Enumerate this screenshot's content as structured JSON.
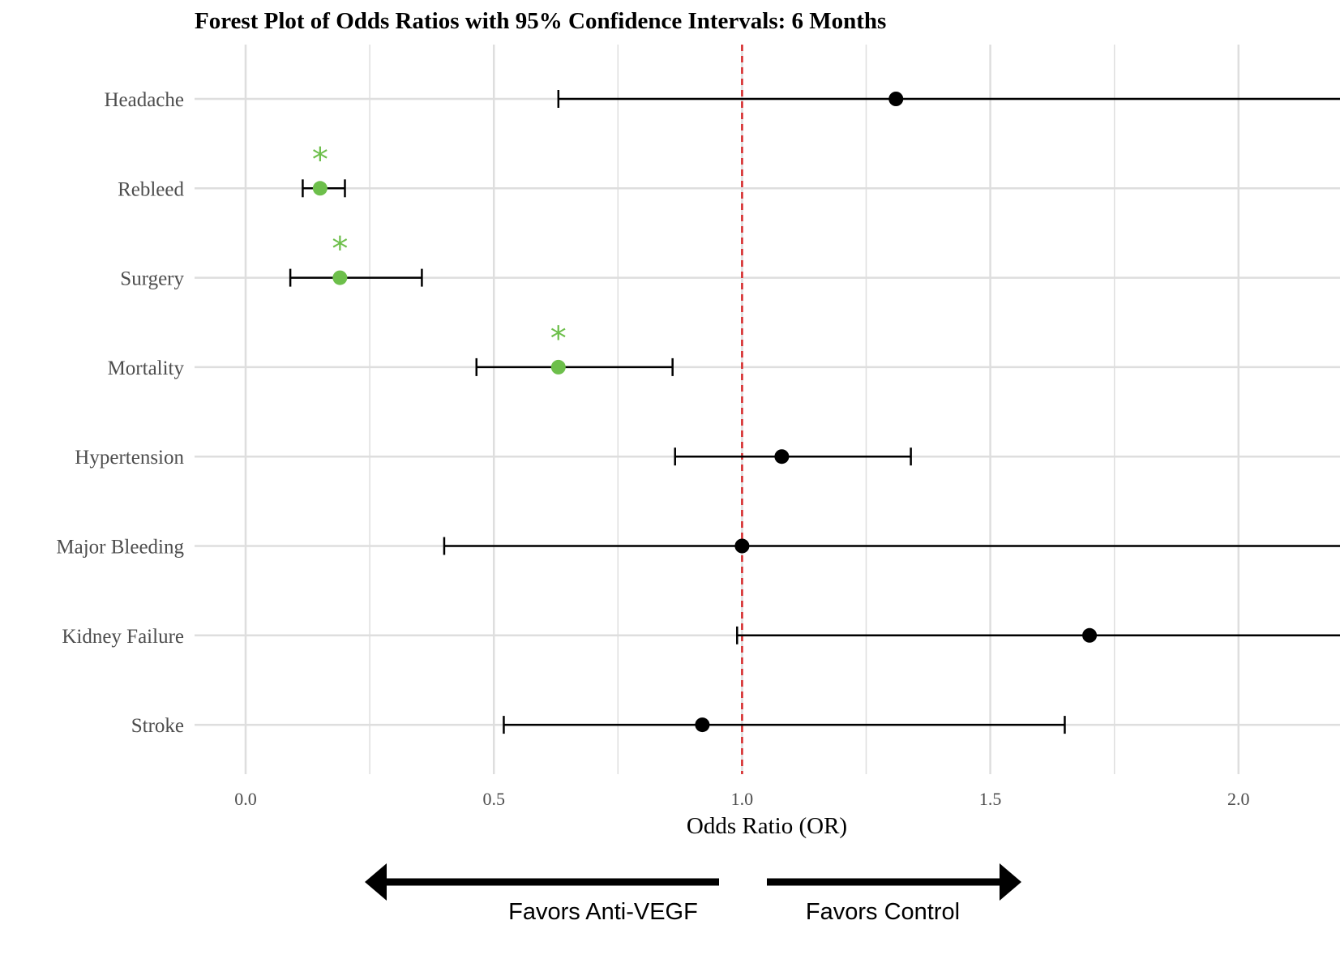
{
  "chart_data": {
    "type": "forest",
    "title": "Forest Plot of Odds Ratios with 95% Confidence Intervals: 6 Months",
    "xlabel": "Odds Ratio (OR)",
    "ylabel": "",
    "xlim": [
      -0.1,
      2.2
    ],
    "x_ticks": [
      0.0,
      0.5,
      1.0,
      1.5,
      2.0
    ],
    "x_tick_labels": [
      "0.0",
      "0.5",
      "1.0",
      "1.5",
      "2.0"
    ],
    "reference_line": 1.0,
    "grid": true,
    "categories": [
      "Headache",
      "Rebleed",
      "Surgery",
      "Mortality",
      "Hypertension",
      "Major Bleeding",
      "Kidney Failure",
      "Stroke"
    ],
    "or": [
      1.31,
      0.15,
      0.19,
      0.63,
      1.08,
      1.0,
      1.7,
      0.92
    ],
    "ci_lower": [
      0.63,
      0.115,
      0.09,
      0.465,
      0.865,
      0.4,
      0.99,
      0.52
    ],
    "ci_upper": [
      2.3,
      0.2,
      0.355,
      0.86,
      1.34,
      2.3,
      2.3,
      1.65
    ],
    "significant": [
      false,
      true,
      true,
      true,
      false,
      false,
      false,
      false
    ],
    "significance_marker": "*",
    "colors": {
      "significant": "#6dbf4b",
      "nonsignificant": "#000000",
      "reference": "#d62728",
      "grid": "#dedede"
    },
    "direction_labels": {
      "left": "Favors Anti-VEGF",
      "right": "Favors Control"
    }
  }
}
